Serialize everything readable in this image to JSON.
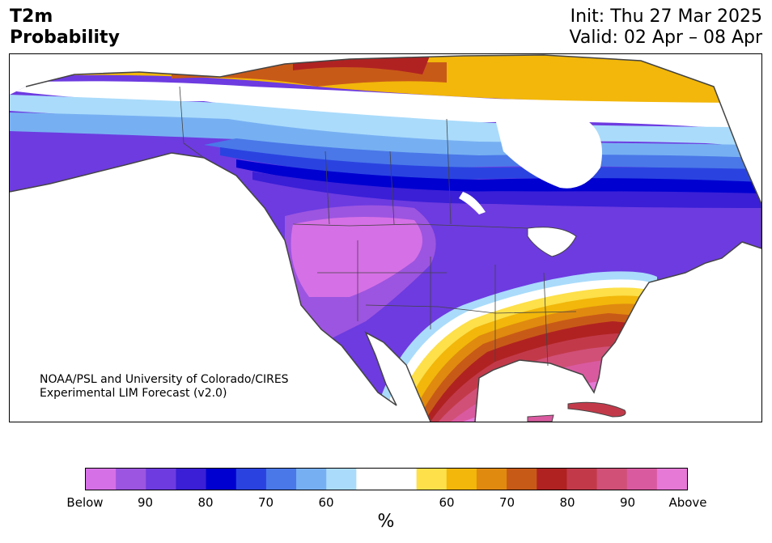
{
  "title": {
    "left_line1": "T2m",
    "left_line2": "Probability",
    "init": "Init: Thu 27 Mar 2025",
    "valid": "Valid: 02 Apr – 08 Apr"
  },
  "credit": {
    "line1": "NOAA/PSL and University of Colorado/CIRES",
    "line2": "Experimental LIM Forecast (v2.0)"
  },
  "colorbar": {
    "unit": "%",
    "labels": [
      "Below",
      "90",
      "80",
      "70",
      "60",
      "60",
      "70",
      "80",
      "90",
      "Above"
    ],
    "colors": [
      "#d670e6",
      "#9c55e0",
      "#6d3be0",
      "#3a1fd6",
      "#0000d0",
      "#2a43e0",
      "#4a78e8",
      "#77b0f2",
      "#aadbfb",
      "#ffffff",
      "#ffffff",
      "#fde04a",
      "#f2b70a",
      "#e08a10",
      "#c85a18",
      "#b02222",
      "#c23a4a",
      "#d05078",
      "#da5aa0",
      "#e678d6"
    ]
  },
  "colors": {
    "background": "#ffffff",
    "border": "#000000",
    "coastline": "#444444"
  }
}
